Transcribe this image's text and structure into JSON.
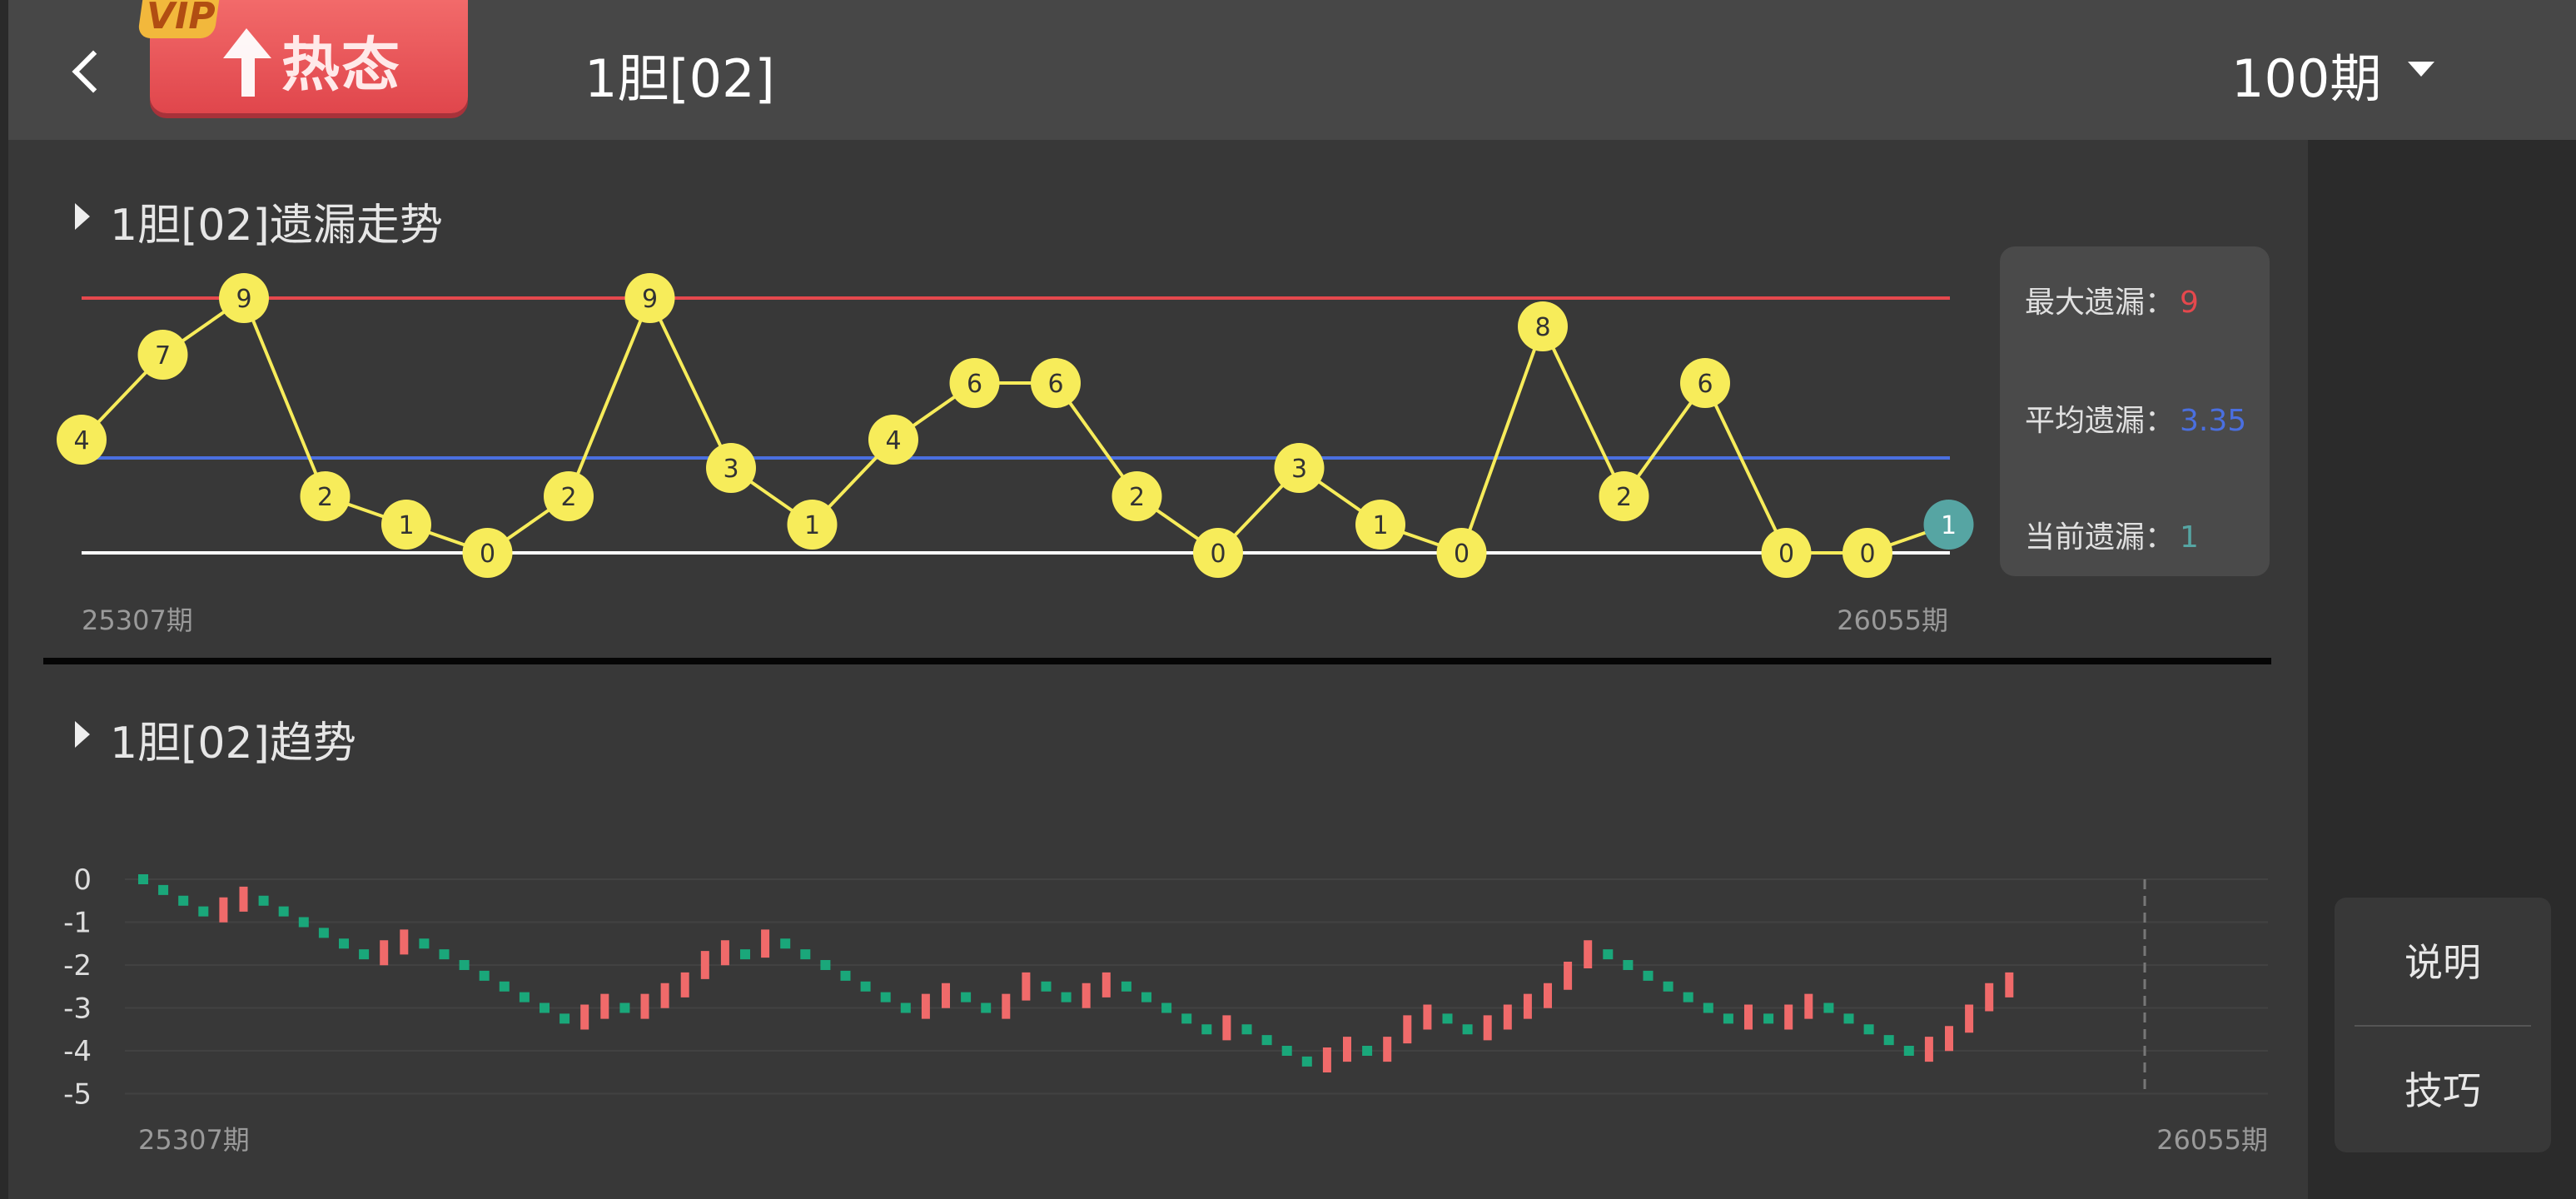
{
  "header": {
    "back_icon": "chevron-left-icon",
    "vip_label": "VIP",
    "hot_label": "热态",
    "hot_icon": "arrow-up-icon",
    "title": "1胆[02]",
    "period_select": "100期",
    "caret_icon": "caret-down-icon"
  },
  "omission_section": {
    "title": "1胆[02]遗漏走势",
    "start_label": "25307期",
    "end_label": "26055期",
    "stats": {
      "max_label": "最大遗漏：",
      "max_value": "9",
      "avg_label": "平均遗漏：",
      "avg_value": "3.35",
      "current_label": "当前遗漏：",
      "current_value": "1"
    }
  },
  "trend_section": {
    "title": "1胆[02]趋势",
    "start_label": "25307期",
    "end_label": "26055期"
  },
  "sidebar": {
    "explain_label": "说明",
    "tips_label": "技巧"
  },
  "colors": {
    "max_line": "#e5484d",
    "avg_line": "#4a6fe0",
    "zero_line": "#ffffff",
    "node_fill": "#f7ec5a",
    "node_current": "#56a5a3",
    "up_bar": "#f06a6a",
    "down_dot": "#1aa77a",
    "stat_max": "#e5484d",
    "stat_avg": "#4a6fe0",
    "stat_current": "#56a5a3"
  },
  "chart_data": [
    {
      "type": "line",
      "series": [
        {
          "values": [
            4,
            7,
            9,
            2,
            1,
            0,
            2,
            9,
            3,
            1,
            4,
            6,
            6,
            2,
            0,
            3,
            1,
            0,
            8,
            2,
            6,
            0,
            0,
            1
          ]
        }
      ],
      "max_line": 9,
      "avg_line": 3.35,
      "x_start": "25307期",
      "x_end": "26055期",
      "ylim": [
        0,
        9
      ]
    },
    {
      "type": "bar",
      "y_ticks": [
        "0",
        "-1",
        "-2",
        "-3",
        "-4",
        "-5"
      ],
      "ylim": [
        -5,
        0
      ],
      "x_start": "25307期",
      "x_end": "26055期",
      "values": [
        0,
        -0.25,
        -0.5,
        -0.75,
        -0.5,
        -0.25,
        -0.5,
        -0.75,
        -1,
        -1.25,
        -1.5,
        -1.75,
        -1.5,
        -1.25,
        -1.5,
        -1.75,
        -2,
        -2.25,
        -2.5,
        -2.75,
        -3,
        -3.25,
        -3,
        -2.75,
        -3,
        -2.75,
        -2.5,
        -2.25,
        -1.75,
        -1.5,
        -1.75,
        -1.25,
        -1.5,
        -1.75,
        -2,
        -2.25,
        -2.5,
        -2.75,
        -3,
        -2.75,
        -2.5,
        -2.75,
        -3,
        -2.75,
        -2.25,
        -2.5,
        -2.75,
        -2.5,
        -2.25,
        -2.5,
        -2.75,
        -3,
        -3.25,
        -3.5,
        -3.25,
        -3.5,
        -3.75,
        -4,
        -4.25,
        -4,
        -3.75,
        -4,
        -3.75,
        -3.25,
        -3,
        -3.25,
        -3.5,
        -3.25,
        -3,
        -2.75,
        -2.5,
        -2,
        -1.5,
        -1.75,
        -2,
        -2.25,
        -2.5,
        -2.75,
        -3,
        -3.25,
        -3,
        -3.25,
        -3,
        -2.75,
        -3,
        -3.25,
        -3.5,
        -3.75,
        -4,
        -3.75,
        -3.5,
        -3,
        -2.5,
        -2.25
      ]
    }
  ]
}
